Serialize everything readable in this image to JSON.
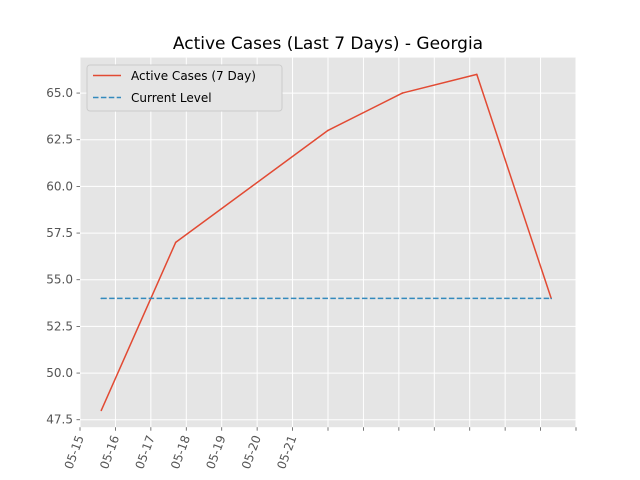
{
  "chart_data": {
    "type": "line",
    "title": "Active Cases (Last 7 Days) - Georgia",
    "xlabel": "",
    "ylabel": "",
    "x_tick_labels": [
      "05-15",
      "05-16",
      "05-17",
      "05-18",
      "05-19",
      "05-20",
      "05-21"
    ],
    "x_tick_count": 15,
    "x_range": [
      0,
      14.0
    ],
    "ylim": [
      47.1,
      66.9
    ],
    "y_ticks": [
      47.5,
      50.0,
      52.5,
      55.0,
      57.5,
      60.0,
      62.5,
      65.0
    ],
    "y_tick_labels": [
      "47.5",
      "50.0",
      "52.5",
      "55.0",
      "57.5",
      "60.0",
      "62.5",
      "65.0"
    ],
    "grid": true,
    "legend_position": "top-left",
    "series": [
      {
        "name": "Active Cases (7 Day)",
        "color": "#E24A33",
        "style": "solid",
        "x": [
          0.6,
          2.7,
          7.0,
          9.1,
          11.2,
          13.3
        ],
        "values": [
          48,
          57,
          63,
          65,
          66,
          54
        ]
      },
      {
        "name": "Current Level",
        "color": "#348ABD",
        "style": "dashed",
        "x": [
          0.6,
          13.3
        ],
        "values": [
          54,
          54
        ]
      }
    ]
  }
}
